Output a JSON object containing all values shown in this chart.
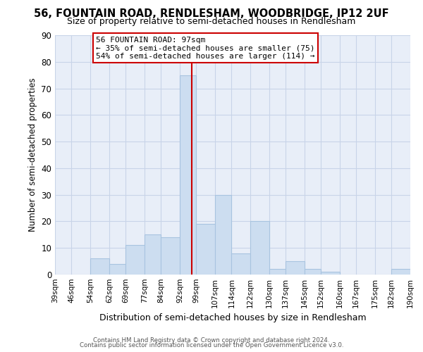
{
  "title": "56, FOUNTAIN ROAD, RENDLESHAM, WOODBRIDGE, IP12 2UF",
  "subtitle": "Size of property relative to semi-detached houses in Rendlesham",
  "xlabel": "Distribution of semi-detached houses by size in Rendlesham",
  "ylabel": "Number of semi-detached properties",
  "bin_labels": [
    "39sqm",
    "46sqm",
    "54sqm",
    "62sqm",
    "69sqm",
    "77sqm",
    "84sqm",
    "92sqm",
    "99sqm",
    "107sqm",
    "114sqm",
    "122sqm",
    "130sqm",
    "137sqm",
    "145sqm",
    "152sqm",
    "160sqm",
    "167sqm",
    "175sqm",
    "182sqm",
    "190sqm"
  ],
  "bin_edges": [
    39,
    46,
    54,
    62,
    69,
    77,
    84,
    92,
    99,
    107,
    114,
    122,
    130,
    137,
    145,
    152,
    160,
    167,
    175,
    182,
    190
  ],
  "bar_heights": [
    0,
    0,
    6,
    4,
    11,
    15,
    14,
    75,
    19,
    30,
    8,
    20,
    2,
    5,
    2,
    1,
    0,
    0,
    0,
    2
  ],
  "bar_color": "#ccddf0",
  "bar_edge_color": "#a8c4e0",
  "property_value": 97,
  "vline_color": "#cc0000",
  "ylim": [
    0,
    90
  ],
  "yticks": [
    0,
    10,
    20,
    30,
    40,
    50,
    60,
    70,
    80,
    90
  ],
  "grid_color": "#c8d4e8",
  "bg_color": "#e8eef8",
  "ann_title": "56 FOUNTAIN ROAD: 97sqm",
  "ann_line2": "← 35% of semi-detached houses are smaller (75)",
  "ann_line3": "54% of semi-detached houses are larger (114) →",
  "footer_line1": "Contains HM Land Registry data © Crown copyright and database right 2024.",
  "footer_line2": "Contains public sector information licensed under the Open Government Licence v3.0."
}
